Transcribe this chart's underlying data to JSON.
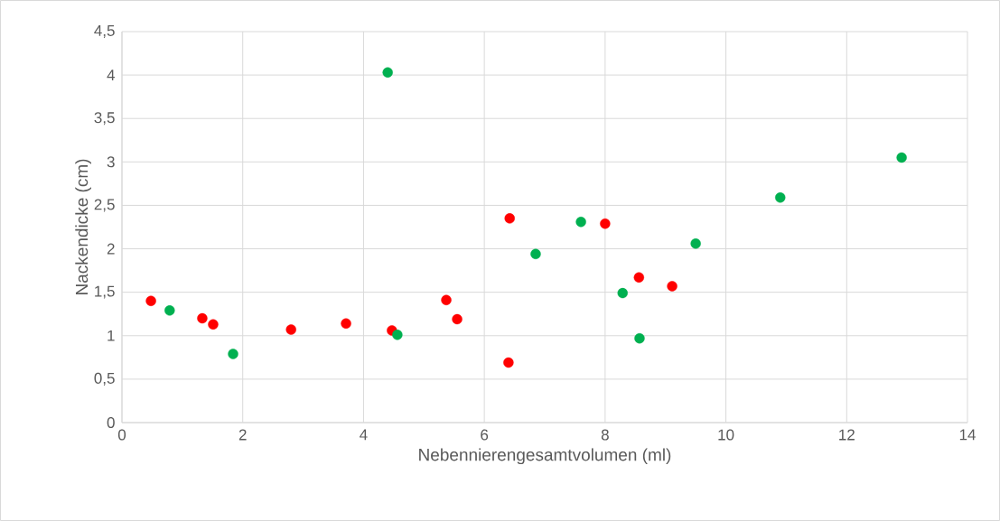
{
  "chart_data": {
    "type": "scatter",
    "xlabel": "Nebennierengesamtvolumen (ml)",
    "ylabel": "Nackendicke (cm)",
    "xlim": [
      0,
      14
    ],
    "xticks": [
      0,
      2,
      4,
      6,
      8,
      10,
      12,
      14
    ],
    "ylim": [
      0,
      4.5
    ],
    "yticks": [
      0,
      {
        "value": 0.5,
        "label": "0,5"
      },
      1,
      {
        "value": 1.5,
        "label": "1,5"
      },
      2,
      {
        "value": 2.5,
        "label": "2,5"
      },
      3,
      {
        "value": 3.5,
        "label": "3,5"
      },
      4,
      {
        "value": 4.5,
        "label": "4,5"
      }
    ],
    "grid": true,
    "marker": "circle",
    "series": [
      {
        "color": "#ff0000",
        "x": [
          0.48,
          1.33,
          1.51,
          2.8,
          3.71,
          4.47,
          5.37,
          5.55,
          6.42,
          6.4,
          8.0,
          8.56,
          9.11
        ],
        "values": [
          1.4,
          1.2,
          1.13,
          1.07,
          1.14,
          1.06,
          1.41,
          1.19,
          2.35,
          0.69,
          2.29,
          1.67,
          1.57
        ]
      },
      {
        "color": "#00b050",
        "x": [
          0.79,
          1.84,
          4.4,
          4.56,
          6.85,
          7.6,
          8.29,
          8.57,
          9.5,
          10.9,
          12.91
        ],
        "values": [
          1.29,
          0.79,
          4.03,
          1.01,
          1.94,
          2.31,
          1.49,
          0.97,
          2.06,
          2.59,
          3.05
        ]
      }
    ]
  }
}
